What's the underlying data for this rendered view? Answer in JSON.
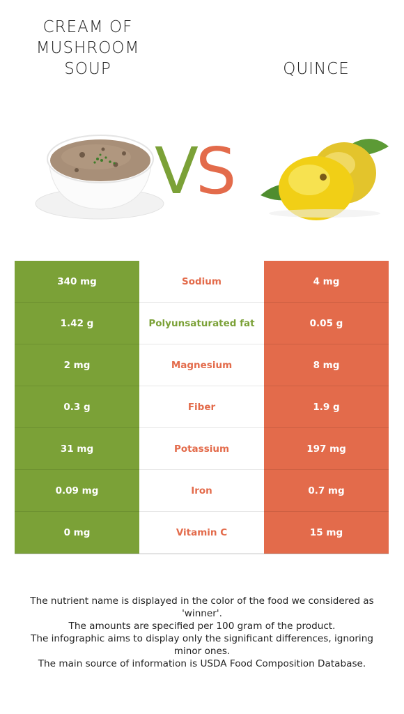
{
  "header": {
    "left_title": "CREAM OF MUSHROOM SOUP",
    "right_title": "QUINCE",
    "vs_v": "V",
    "vs_s": "S"
  },
  "colors": {
    "left_food": "#7ba137",
    "right_food": "#e36b4b"
  },
  "rows": [
    {
      "nutrient": "Sodium",
      "left": "340 mg",
      "right": "4 mg",
      "winner": "right"
    },
    {
      "nutrient": "Polyunsaturated fat",
      "left": "1.42 g",
      "right": "0.05 g",
      "winner": "left"
    },
    {
      "nutrient": "Magnesium",
      "left": "2 mg",
      "right": "8 mg",
      "winner": "right"
    },
    {
      "nutrient": "Fiber",
      "left": "0.3 g",
      "right": "1.9 g",
      "winner": "right"
    },
    {
      "nutrient": "Potassium",
      "left": "31 mg",
      "right": "197 mg",
      "winner": "right"
    },
    {
      "nutrient": "Iron",
      "left": "0.09 mg",
      "right": "0.7 mg",
      "winner": "right"
    },
    {
      "nutrient": "Vitamin C",
      "left": "0 mg",
      "right": "15 mg",
      "winner": "right"
    }
  ],
  "footer": [
    "The nutrient name is displayed in the color of the food we considered as 'winner'.",
    "The amounts are specified per 100 gram of the product.",
    "The infographic aims to display only the significant differences, ignoring minor ones.",
    "The main source of information is USDA Food Composition Database."
  ]
}
